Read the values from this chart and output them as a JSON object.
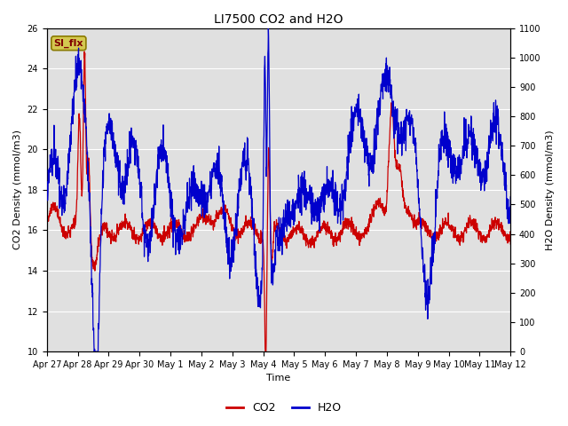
{
  "title": "LI7500 CO2 and H2O",
  "xlabel": "Time",
  "ylabel_left": "CO2 Density (mmol/m3)",
  "ylabel_right": "H2O Density (mmol/m3)",
  "legend_label": "SI_flx",
  "co2_color": "#cc0000",
  "h2o_color": "#0000cc",
  "ylim_left": [
    10,
    26
  ],
  "ylim_right": [
    0,
    1100
  ],
  "yticks_left": [
    10,
    12,
    14,
    16,
    18,
    20,
    22,
    24,
    26
  ],
  "yticks_right": [
    0,
    100,
    200,
    300,
    400,
    500,
    600,
    700,
    800,
    900,
    1000,
    1100
  ],
  "background_color": "#e0e0e0",
  "legend_box_facecolor": "#d4c850",
  "legend_box_edgecolor": "#8a7a00",
  "legend_box_text_color": "#800000",
  "tick_label_size": 7,
  "axis_label_size": 8,
  "title_size": 10,
  "line_width": 0.9
}
